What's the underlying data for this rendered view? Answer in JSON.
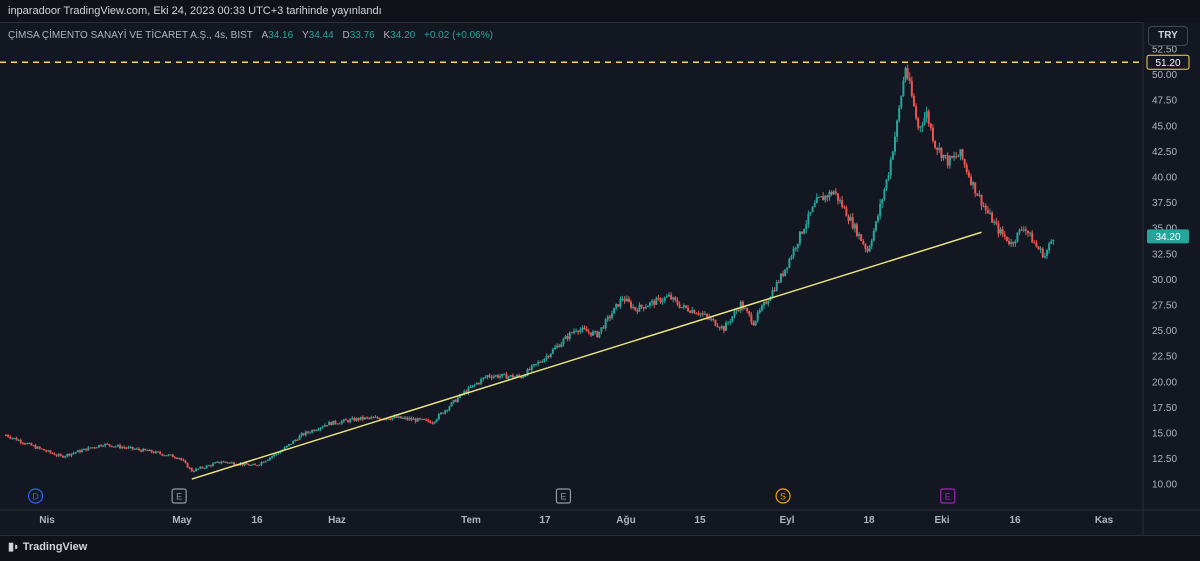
{
  "published": "inparadoor TradingView.com, Eki 24, 2023 00:33 UTC+3 tarihinde yayınlandı",
  "legend": {
    "symbol": "ÇİMSA ÇİMENTO SANAYİ VE TİCARET A.Ş., 4s, BIST",
    "open_label": "A",
    "open": "34.16",
    "high_label": "Y",
    "high": "34.44",
    "low_label": "D",
    "low": "33.76",
    "close_label": "K",
    "close": "34.20",
    "change": "+0.02 (+0.06%)"
  },
  "currency": "TRY",
  "brand": "TradingView",
  "colors": {
    "background": "#131722",
    "up": "#26a69a",
    "down": "#ef5350",
    "trendline": "#e8e37a",
    "dashed_level": "#ffd54f",
    "price_badge": "#26a69a"
  },
  "chart_data": {
    "type": "candlestick",
    "interval": "4s",
    "y_ticks": [
      "10.00",
      "12.50",
      "15.00",
      "17.50",
      "20.00",
      "22.50",
      "25.00",
      "27.50",
      "30.00",
      "32.50",
      "35.00",
      "37.50",
      "40.00",
      "42.50",
      "45.00",
      "47.50",
      "50.00",
      "52.50"
    ],
    "ylim": [
      9,
      54
    ],
    "x_ticks": [
      "Nis",
      "May",
      "16",
      "Haz",
      "Tem",
      "17",
      "Ağu",
      "15",
      "Eyl",
      "18",
      "Eki",
      "16",
      "Kas"
    ],
    "horizontal_level": {
      "value": 51.2,
      "label": "51.20",
      "style": "dashed"
    },
    "last_price": {
      "value": 34.2,
      "label": "34.20"
    },
    "trendline": {
      "from": [
        "2023-05-11",
        10.5
      ],
      "to": [
        "2023-11-14",
        34.6
      ]
    },
    "event_markers": [
      {
        "symbol": "D",
        "date": "2023-04-04",
        "color": "#2962ff"
      },
      {
        "symbol": "E",
        "date": "2023-05-08",
        "color": "#9598a1"
      },
      {
        "symbol": "E",
        "date": "2023-08-07",
        "color": "#9598a1"
      },
      {
        "symbol": "S",
        "date": "2023-09-28",
        "color": "#f59f00"
      },
      {
        "symbol": "E",
        "date": "2023-11-06",
        "color": "#9c27b0"
      }
    ],
    "price_path": [
      [
        "2023-03-28",
        14.8
      ],
      [
        "2023-04-04",
        13.6
      ],
      [
        "2023-04-10",
        12.7
      ],
      [
        "2023-04-20",
        13.9
      ],
      [
        "2023-05-01",
        13.2
      ],
      [
        "2023-05-08",
        12.6
      ],
      [
        "2023-05-11",
        11.3
      ],
      [
        "2023-05-18",
        12.2
      ],
      [
        "2023-05-26",
        11.8
      ],
      [
        "2023-06-01",
        13.2
      ],
      [
        "2023-06-06",
        14.8
      ],
      [
        "2023-06-12",
        15.9
      ],
      [
        "2023-06-20",
        16.4
      ],
      [
        "2023-06-28",
        16.5
      ],
      [
        "2023-07-07",
        16.1
      ],
      [
        "2023-07-14",
        18.8
      ],
      [
        "2023-07-20",
        20.6
      ],
      [
        "2023-07-28",
        20.5
      ],
      [
        "2023-08-03",
        22.5
      ],
      [
        "2023-08-10",
        25.2
      ],
      [
        "2023-08-15",
        24.6
      ],
      [
        "2023-08-21",
        28.2
      ],
      [
        "2023-08-24",
        27.1
      ],
      [
        "2023-09-01",
        28.3
      ],
      [
        "2023-09-04",
        27.3
      ],
      [
        "2023-09-08",
        26.8
      ],
      [
        "2023-09-14",
        25.2
      ],
      [
        "2023-09-18",
        27.6
      ],
      [
        "2023-09-21",
        25.8
      ],
      [
        "2023-09-26",
        29.2
      ],
      [
        "2023-09-28",
        30.6
      ],
      [
        "2023-10-03",
        35.2
      ],
      [
        "2023-10-06",
        37.6
      ],
      [
        "2023-10-10",
        38.6
      ],
      [
        "2023-10-13",
        36.5
      ],
      [
        "2023-10-18",
        32.8
      ],
      [
        "2023-10-20",
        35.4
      ],
      [
        "2023-10-23",
        40.5
      ],
      [
        "2023-10-25",
        45.2
      ],
      [
        "2023-10-27",
        50.8
      ],
      [
        "2023-10-30",
        44.8
      ],
      [
        "2023-11-01",
        46.2
      ],
      [
        "2023-11-03",
        43.2
      ],
      [
        "2023-11-06",
        41.5
      ],
      [
        "2023-11-09",
        42.2
      ],
      [
        "2023-11-12",
        39.2
      ],
      [
        "2023-11-15",
        36.8
      ],
      [
        "2023-11-18",
        34.8
      ],
      [
        "2023-11-21",
        33.5
      ],
      [
        "2023-11-24",
        35.2
      ],
      [
        "2023-11-27",
        33.2
      ],
      [
        "2023-11-29",
        32.3
      ],
      [
        "2023-12-01",
        34.2
      ]
    ]
  }
}
